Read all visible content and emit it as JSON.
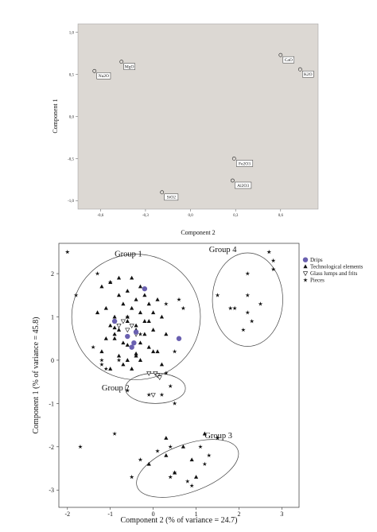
{
  "chart_data": [
    {
      "type": "scatter",
      "title": "",
      "xlabel": "Component 2",
      "ylabel": "Component 1",
      "xlim": [
        -0.75,
        0.85
      ],
      "ylim": [
        -1.1,
        1.1
      ],
      "x_ticks": [
        "-0,6",
        "-0,3",
        "0,0",
        "0,3",
        "0,6"
      ],
      "x_tick_values": [
        -0.6,
        -0.3,
        0.0,
        0.3,
        0.6
      ],
      "y_ticks": [
        "1,0",
        "0,5",
        "0,0",
        "-0,5",
        "-1,0"
      ],
      "y_tick_values": [
        1.0,
        0.5,
        0.0,
        -0.5,
        -1.0
      ],
      "points": [
        {
          "label": "Na2O",
          "x": -0.64,
          "y": 0.54
        },
        {
          "label": "MgO",
          "x": -0.46,
          "y": 0.65
        },
        {
          "label": "CaO",
          "x": 0.6,
          "y": 0.73
        },
        {
          "label": "K2O",
          "x": 0.73,
          "y": 0.56
        },
        {
          "label": "Fe2O3",
          "x": 0.29,
          "y": -0.5
        },
        {
          "label": "Al2O3",
          "x": 0.28,
          "y": -0.76
        },
        {
          "label": "SiO2",
          "x": -0.19,
          "y": -0.9
        }
      ],
      "background": "#dcd8d3"
    },
    {
      "type": "scatter",
      "title": "",
      "xlabel": "Component 2 (% of variance = 24.7)",
      "ylabel": "Component 1 (% of variance = 45.8)",
      "xlim": [
        -2.2,
        3.4
      ],
      "ylim": [
        -3.4,
        2.7
      ],
      "x_ticks": [
        "-2",
        "-1",
        "0",
        "1",
        "2",
        "3"
      ],
      "x_tick_values": [
        -2,
        -1,
        0,
        1,
        2,
        3
      ],
      "y_ticks": [
        "2",
        "1",
        "0",
        "-1",
        "-2",
        "-3"
      ],
      "y_tick_values": [
        2,
        1,
        0,
        -1,
        -2,
        -3
      ],
      "legend": {
        "placement": "top-right",
        "entries": [
          {
            "name": "Drips",
            "marker": "circle",
            "color": "#6a60b0"
          },
          {
            "name": "Technological elements",
            "marker": "triangle",
            "color": "#000000"
          },
          {
            "name": "Glass lumps and frits",
            "marker": "triangle-down",
            "color": "#000000"
          },
          {
            "name": "Pieces",
            "marker": "star",
            "color": "#000000"
          }
        ]
      },
      "groups": [
        {
          "label": "Group 1",
          "label_x": -0.9,
          "label_y": 2.4,
          "cx": -0.4,
          "cy": 1.0,
          "rx": 1.5,
          "ry": 1.45,
          "angle": 0
        },
        {
          "label": "Group 4",
          "label_x": 1.3,
          "label_y": 2.5,
          "cx": 2.2,
          "cy": 1.4,
          "rx": 0.82,
          "ry": 1.08,
          "angle": 0
        },
        {
          "label": "Group 2",
          "label_x": -1.2,
          "label_y": -0.7,
          "cx": 0.05,
          "cy": -0.65,
          "rx": 0.7,
          "ry": 0.35,
          "angle": 0
        },
        {
          "label": "Group 3",
          "label_x": 1.2,
          "label_y": -1.8,
          "cx": 0.8,
          "cy": -2.5,
          "rx": 1.25,
          "ry": 0.55,
          "angle": -20
        }
      ],
      "series": [
        {
          "name": "Drips",
          "marker": "circle",
          "x": [
            -0.9,
            -0.4,
            -0.6,
            -0.45,
            -0.5,
            0.6,
            -0.2
          ],
          "y": [
            0.9,
            0.65,
            0.55,
            0.4,
            0.3,
            0.5,
            1.65
          ]
        },
        {
          "name": "Technological elements",
          "marker": "triangle",
          "x": [
            -1.2,
            -1.0,
            -0.8,
            -0.6,
            -0.4,
            -0.2,
            -0.1,
            0.1,
            -1.3,
            -1.1,
            -0.9,
            -0.7,
            -0.5,
            -0.3,
            -0.1,
            0.2,
            -1.0,
            -0.8,
            -0.6,
            -0.4,
            -0.2,
            0.0,
            0.3,
            -0.9,
            -0.7,
            -0.5,
            -0.3,
            0.0,
            -1.2,
            -0.8,
            -0.6,
            -0.4,
            -0.1,
            0.2,
            -1.0,
            -0.7,
            -0.5,
            -0.3,
            0.1,
            -0.9,
            -0.6,
            -0.4,
            -0.2,
            0.0,
            -1.1,
            -0.8,
            -0.5,
            -0.3,
            -0.6,
            -0.9,
            -0.4,
            0.7,
            0.9,
            0.3,
            1.2,
            -0.1,
            0.5,
            1.0,
            0.3
          ],
          "y": [
            1.7,
            1.8,
            1.5,
            1.6,
            1.4,
            1.5,
            1.3,
            1.4,
            1.1,
            1.2,
            1.0,
            1.3,
            1.2,
            1.1,
            0.9,
            1.0,
            0.8,
            0.7,
            0.9,
            0.8,
            0.6,
            0.7,
            0.6,
            0.5,
            0.4,
            0.3,
            0.4,
            0.2,
            0.2,
            0.1,
            0.0,
            0.1,
            0.3,
            -0.1,
            -0.2,
            -0.1,
            -0.2,
            0.0,
            0.2,
            0.6,
            1.0,
            0.7,
            0.9,
            1.1,
            0.5,
            1.9,
            1.9,
            1.7,
            0.35,
            0.75,
            0.15,
            -2.0,
            -2.3,
            -1.8,
            -1.7,
            -2.4,
            -2.6,
            -2.7,
            -2.2
          ],
          "note": ""
        },
        {
          "name": "Glass lumps and frits",
          "marker": "triangle-down",
          "x": [
            -0.7,
            -0.5,
            -0.6,
            -0.8,
            -0.4,
            -0.1,
            0.05,
            0.1,
            0.15,
            0.0
          ],
          "y": [
            0.9,
            0.8,
            0.7,
            0.8,
            0.6,
            -0.3,
            -0.3,
            -0.35,
            -0.4,
            -0.8
          ],
          "note": ""
        },
        {
          "name": "Pieces",
          "marker": "star",
          "x": [
            -2.0,
            -1.8,
            -1.3,
            -1.0,
            -0.6,
            0.3,
            0.7,
            -1.4,
            -1.2,
            -1.2,
            -1.1,
            -0.8,
            0.5,
            0.6,
            -0.3,
            0.3,
            2.7,
            2.8,
            2.2,
            2.8,
            2.2,
            1.5,
            1.8,
            1.9,
            2.5,
            2.3,
            2.2,
            2.1,
            -0.6,
            -0.1,
            0.2,
            0.4,
            0.5,
            -0.5,
            -0.9,
            0.1,
            1.1,
            1.3,
            1.5,
            -1.7,
            -0.3,
            0.5,
            0.8,
            1.2,
            0.9,
            0.4,
            0.4
          ],
          "y": [
            2.5,
            1.5,
            2.0,
            1.8,
            1.0,
            1.3,
            1.2,
            0.3,
            0.0,
            -0.1,
            -0.2,
            0.0,
            0.2,
            1.4,
            0.6,
            -0.3,
            2.5,
            2.3,
            2.0,
            2.1,
            1.5,
            1.5,
            1.2,
            1.2,
            1.3,
            0.9,
            1.1,
            0.7,
            -0.7,
            -0.8,
            -0.8,
            -0.6,
            -1.0,
            -2.7,
            -1.7,
            -2.1,
            -2.0,
            -2.2,
            -1.8,
            -2.0,
            -2.3,
            -2.6,
            -2.8,
            -2.4,
            -2.9,
            -2.0,
            -2.7
          ],
          "note": ""
        }
      ]
    }
  ]
}
